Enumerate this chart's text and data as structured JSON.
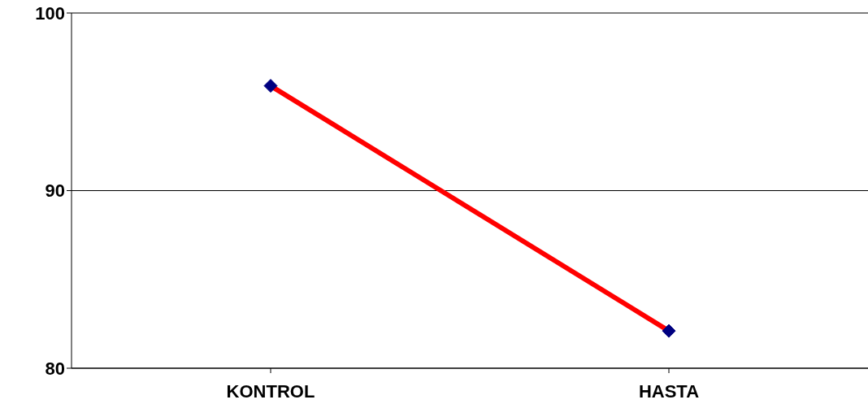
{
  "chart_data": {
    "type": "line",
    "categories": [
      "KONTROL",
      "HASTA"
    ],
    "series": [
      {
        "color": "#ff0000",
        "values": [
          95.9,
          82.1
        ]
      }
    ],
    "ylim": [
      80,
      100
    ],
    "yticks": [
      80,
      90,
      100
    ],
    "grid": "y",
    "marker": "diamond",
    "line_style": "solid"
  }
}
